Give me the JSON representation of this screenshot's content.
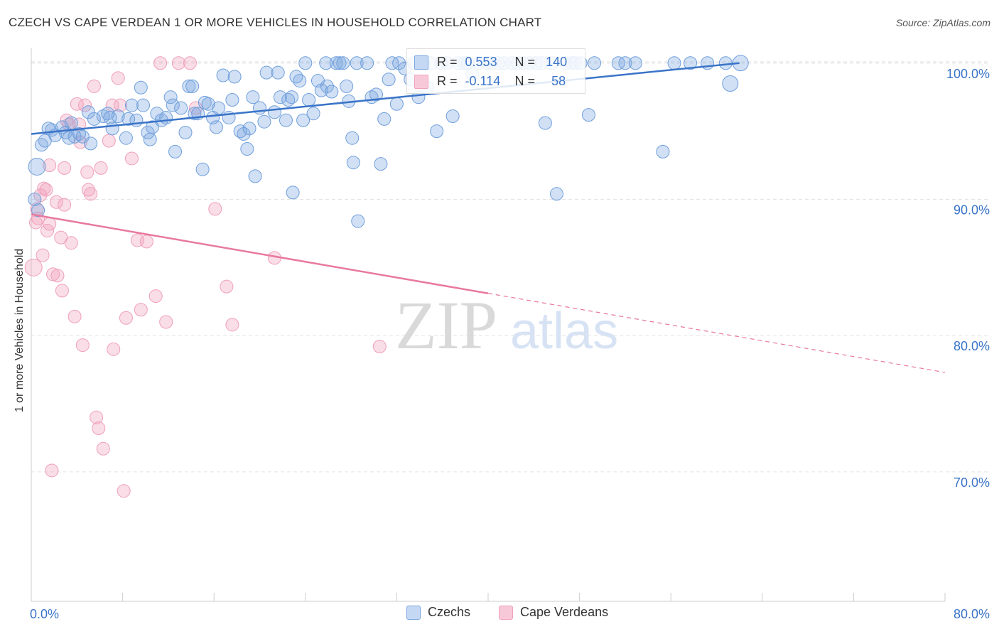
{
  "header": {
    "title": "CZECH VS CAPE VERDEAN 1 OR MORE VEHICLES IN HOUSEHOLD CORRELATION CHART",
    "source": "Source: ZipAtlas.com"
  },
  "watermark": {
    "zip": "ZIP",
    "atlas": "atlas"
  },
  "stats_legend": {
    "r_label": "R =",
    "n_label": "N =",
    "rows": [
      {
        "r": "0.553",
        "n": "140",
        "color": "#7aa7e0"
      },
      {
        "r": "-0.114",
        "n": "58",
        "color": "#f0a1bb"
      }
    ]
  },
  "colors": {
    "blue": "#3a74c8",
    "pink": "#e8799f",
    "grid": "#e3e3e3",
    "axis_text": "#3a74c8"
  },
  "chart_data": {
    "type": "scatter",
    "title": "CZECH VS CAPE VERDEAN 1 OR MORE VEHICLES IN HOUSEHOLD CORRELATION CHART",
    "xlabel": "",
    "ylabel": "1 or more Vehicles in Household",
    "xlim": [
      0,
      80
    ],
    "ylim": [
      60.5,
      101.5
    ],
    "x_tick_labels": [
      "0.0%",
      "80.0%"
    ],
    "y_ticks": [
      70,
      80,
      90,
      100
    ],
    "y_tick_labels": [
      "70.0%",
      "80.0%",
      "90.0%",
      "100.0%"
    ],
    "grid": "horizontal dashed",
    "legend_position": "bottom-center",
    "series": [
      {
        "name": "Czechs",
        "color": "#7aa7e0",
        "r": 0.553,
        "n": 140,
        "trend": {
          "x": [
            0,
            62
          ],
          "y": [
            94.8,
            100
          ],
          "style": "solid"
        },
        "points": [
          [
            0.5,
            92.4
          ],
          [
            0.9,
            94
          ],
          [
            1.2,
            94.3
          ],
          [
            1.5,
            95.2
          ],
          [
            1.8,
            95.1
          ],
          [
            2.1,
            94.7
          ],
          [
            2.7,
            95.3
          ],
          [
            3,
            94.9
          ],
          [
            3.3,
            94.5
          ],
          [
            3.5,
            95.6
          ],
          [
            3.8,
            94.6
          ],
          [
            4.2,
            94.8
          ],
          [
            4.5,
            94.6
          ],
          [
            5.2,
            94.1
          ],
          [
            5.5,
            95.9
          ],
          [
            5,
            96.4
          ],
          [
            6.3,
            96.1
          ],
          [
            6.7,
            96.3
          ],
          [
            6.9,
            96
          ],
          [
            7.1,
            95.2
          ],
          [
            7.6,
            96.1
          ],
          [
            8.3,
            94.5
          ],
          [
            8.5,
            95.9
          ],
          [
            8.8,
            96.9
          ],
          [
            9.2,
            95.8
          ],
          [
            9.6,
            98.2
          ],
          [
            9.8,
            96.9
          ],
          [
            10.2,
            94.9
          ],
          [
            10.4,
            94.4
          ],
          [
            10.6,
            95.3
          ],
          [
            11,
            96.3
          ],
          [
            11.4,
            95.8
          ],
          [
            11.8,
            96
          ],
          [
            12.2,
            97.5
          ],
          [
            12.4,
            96.9
          ],
          [
            12.6,
            93.5
          ],
          [
            13.1,
            96.7
          ],
          [
            13.5,
            94.9
          ],
          [
            13.8,
            98.3
          ],
          [
            14.1,
            98.3
          ],
          [
            14.3,
            96.3
          ],
          [
            14.6,
            96.3
          ],
          [
            15,
            92.2
          ],
          [
            15.2,
            97.1
          ],
          [
            15.5,
            97
          ],
          [
            15.9,
            96
          ],
          [
            16.2,
            95.3
          ],
          [
            16.4,
            96.7
          ],
          [
            16.8,
            99.1
          ],
          [
            17.3,
            96
          ],
          [
            17.6,
            97.3
          ],
          [
            17.8,
            99
          ],
          [
            18.3,
            95
          ],
          [
            18.6,
            94.8
          ],
          [
            18.9,
            93.7
          ],
          [
            19.1,
            95.2
          ],
          [
            19.4,
            97.5
          ],
          [
            19.6,
            91.7
          ],
          [
            20,
            96.7
          ],
          [
            20.4,
            95.7
          ],
          [
            20.6,
            99.3
          ],
          [
            21.3,
            96.4
          ],
          [
            21.6,
            99.3
          ],
          [
            21.8,
            97.5
          ],
          [
            22.3,
            95.8
          ],
          [
            22.5,
            97.3
          ],
          [
            22.8,
            97.5
          ],
          [
            22.9,
            90.5
          ],
          [
            23.2,
            99
          ],
          [
            23.8,
            95.8
          ],
          [
            23.5,
            98.7
          ],
          [
            24,
            100
          ],
          [
            24.3,
            97.3
          ],
          [
            24.7,
            96.3
          ],
          [
            25.1,
            98.7
          ],
          [
            25.4,
            98
          ],
          [
            25.8,
            100
          ],
          [
            25.9,
            98.3
          ],
          [
            26.3,
            97.9
          ],
          [
            26.7,
            100
          ],
          [
            27,
            100
          ],
          [
            27.3,
            100
          ],
          [
            27.6,
            98.3
          ],
          [
            27.8,
            97.2
          ],
          [
            28.2,
            92.7
          ],
          [
            28.5,
            100
          ],
          [
            28.1,
            94.5
          ],
          [
            28.6,
            88.4
          ],
          [
            29.4,
            100
          ],
          [
            29.8,
            97.5
          ],
          [
            30.2,
            97.7
          ],
          [
            30.6,
            92.6
          ],
          [
            30.9,
            95.9
          ],
          [
            31.3,
            98.8
          ],
          [
            31.6,
            100
          ],
          [
            32,
            97
          ],
          [
            32.2,
            100
          ],
          [
            32.7,
            99.6
          ],
          [
            33.2,
            98.8
          ],
          [
            33.5,
            100
          ],
          [
            33.9,
            97.5
          ],
          [
            34.3,
            100
          ],
          [
            34.7,
            98.2
          ],
          [
            35,
            100
          ],
          [
            35.5,
            95
          ],
          [
            35.9,
            100
          ],
          [
            36.4,
            100
          ],
          [
            36.9,
            96.1
          ],
          [
            37.4,
            100
          ],
          [
            37.9,
            100
          ],
          [
            38.2,
            100
          ],
          [
            38.6,
            99.2
          ],
          [
            39.2,
            100
          ],
          [
            39.9,
            100
          ],
          [
            40.3,
            100
          ],
          [
            40.9,
            100
          ],
          [
            41.4,
            100
          ],
          [
            42.1,
            100
          ],
          [
            42.6,
            100
          ],
          [
            43.1,
            100
          ],
          [
            43.6,
            100
          ],
          [
            44.2,
            100
          ],
          [
            44.7,
            100
          ],
          [
            45,
            95.6
          ],
          [
            45.6,
            100
          ],
          [
            46,
            90.4
          ],
          [
            46.8,
            100
          ],
          [
            47.3,
            100
          ],
          [
            47.6,
            100
          ],
          [
            48.1,
            100
          ],
          [
            48.8,
            96.2
          ],
          [
            49.3,
            100
          ],
          [
            51.4,
            100
          ],
          [
            52,
            100
          ],
          [
            52.9,
            100
          ],
          [
            55.3,
            93.5
          ],
          [
            56.3,
            100
          ],
          [
            57.7,
            100
          ],
          [
            59.2,
            100
          ],
          [
            60.8,
            100
          ],
          [
            61.2,
            98.5
          ],
          [
            62.1,
            100
          ],
          [
            0.3,
            90
          ],
          [
            0.6,
            89.2
          ]
        ]
      },
      {
        "name": "Cape Verdeans",
        "color": "#f0a1bb",
        "r": -0.114,
        "n": 58,
        "trend": {
          "x": [
            0,
            40,
            80
          ],
          "y": [
            88.9,
            83.1,
            77.3
          ],
          "style": "solid-then-dashed"
        },
        "points": [
          [
            0.2,
            85
          ],
          [
            0.4,
            88.3
          ],
          [
            0.5,
            89.3
          ],
          [
            0.6,
            88.6
          ],
          [
            0.8,
            90.3
          ],
          [
            1,
            85.9
          ],
          [
            1.1,
            90.8
          ],
          [
            1.3,
            90.7
          ],
          [
            1.4,
            87.7
          ],
          [
            1.6,
            88.2
          ],
          [
            1.8,
            70.1
          ],
          [
            1.9,
            84.5
          ],
          [
            2.2,
            89.8
          ],
          [
            2.3,
            84.4
          ],
          [
            2.6,
            87.2
          ],
          [
            2.7,
            83.3
          ],
          [
            2.9,
            92.3
          ],
          [
            3.1,
            95.8
          ],
          [
            3.3,
            95.5
          ],
          [
            3.5,
            86.8
          ],
          [
            3.8,
            81.4
          ],
          [
            4,
            97
          ],
          [
            4.2,
            95.5
          ],
          [
            4.3,
            94.2
          ],
          [
            4.5,
            79.3
          ],
          [
            4.7,
            96.9
          ],
          [
            4.9,
            92
          ],
          [
            5,
            90.7
          ],
          [
            5.2,
            90.4
          ],
          [
            5.5,
            98.3
          ],
          [
            5.7,
            74
          ],
          [
            5.9,
            73.2
          ],
          [
            6.1,
            92.3
          ],
          [
            6.3,
            71.7
          ],
          [
            6.8,
            94.3
          ],
          [
            7.1,
            96.9
          ],
          [
            7.2,
            79
          ],
          [
            7.6,
            98.9
          ],
          [
            7.8,
            96.9
          ],
          [
            8.1,
            68.6
          ],
          [
            8.3,
            81.3
          ],
          [
            8.8,
            93
          ],
          [
            9.3,
            87
          ],
          [
            9.6,
            81.9
          ],
          [
            10.1,
            86.9
          ],
          [
            10.9,
            82.9
          ],
          [
            11.8,
            81
          ],
          [
            11.3,
            100
          ],
          [
            13.9,
            100
          ],
          [
            12.9,
            100
          ],
          [
            14.4,
            96.7
          ],
          [
            16.1,
            89.3
          ],
          [
            17.1,
            83.6
          ],
          [
            17.6,
            80.8
          ],
          [
            21.3,
            85.7
          ],
          [
            30.5,
            79.2
          ],
          [
            2.9,
            89.6
          ],
          [
            1.6,
            92.5
          ]
        ]
      }
    ]
  },
  "bottom_legend": {
    "czechs": "Czechs",
    "cape_verdeans": "Cape Verdeans"
  }
}
